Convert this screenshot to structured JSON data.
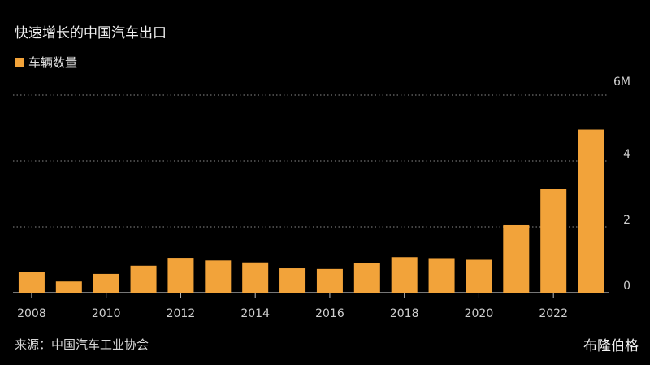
{
  "header": {
    "title": "快速增长的中国汽车出口"
  },
  "legend": {
    "label": "车辆数量",
    "color": "#F2A33A"
  },
  "footer": {
    "source": "来源：中国汽车工业协会",
    "brand": "布隆伯格"
  },
  "chart_data": {
    "type": "bar",
    "title": "快速增长的中国汽车出口",
    "xlabel": "",
    "ylabel": "",
    "ylim": [
      0,
      6
    ],
    "y_ticks": [
      "0",
      "2",
      "4",
      "6M"
    ],
    "y_tick_values": [
      0,
      2,
      4,
      6
    ],
    "x_tick_labels": [
      "2008",
      "2010",
      "2012",
      "2014",
      "2016",
      "2018",
      "2020",
      "2022"
    ],
    "grid": true,
    "legend_position": "top-left",
    "categories": [
      "2008",
      "2009",
      "2010",
      "2011",
      "2012",
      "2013",
      "2014",
      "2015",
      "2016",
      "2017",
      "2018",
      "2019",
      "2020",
      "2021",
      "2022",
      "2023"
    ],
    "series": [
      {
        "name": "车辆数量",
        "values": [
          0.63,
          0.34,
          0.57,
          0.82,
          1.06,
          0.98,
          0.92,
          0.74,
          0.72,
          0.9,
          1.08,
          1.05,
          1.0,
          2.05,
          3.14,
          4.95
        ],
        "color": "#F2A33A"
      }
    ]
  }
}
